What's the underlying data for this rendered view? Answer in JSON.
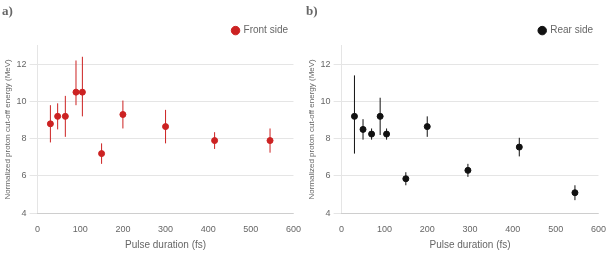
{
  "chart_data": [
    {
      "type": "scatter",
      "title": "a)",
      "xlabel": "Pulse duration (fs)",
      "ylabel": "Normalized proton cut-off energy (MeV)",
      "x": [
        30,
        47,
        65,
        90,
        105,
        150,
        200,
        300,
        415,
        545
      ],
      "series": [
        {
          "name": "Front side",
          "color": "#cc2222",
          "marker": "circle",
          "values": [
            8.8,
            9.2,
            9.2,
            10.5,
            10.5,
            7.2,
            9.3,
            8.65,
            7.9,
            7.9
          ],
          "error_lo": [
            1.0,
            0.7,
            1.1,
            0.7,
            1.3,
            0.55,
            0.75,
            0.9,
            0.45,
            0.65
          ],
          "error_hi": [
            1.0,
            0.7,
            1.1,
            1.7,
            1.9,
            0.55,
            0.75,
            0.9,
            0.45,
            0.65
          ]
        }
      ],
      "xlim": [
        0,
        600
      ],
      "xticks": [
        0,
        100,
        200,
        300,
        400,
        500,
        600
      ],
      "ylim": [
        4,
        13
      ],
      "yticks": [
        4,
        6,
        8,
        10,
        12
      ],
      "grid": "y",
      "legend": "upper right"
    },
    {
      "type": "scatter",
      "title": "b)",
      "xlabel": "Pulse duration (fs)",
      "ylabel": "Normalized proton cut-off energy (MeV)",
      "x": [
        30,
        50,
        70,
        90,
        105,
        150,
        200,
        295,
        415,
        545
      ],
      "series": [
        {
          "name": "Rear side",
          "color": "#111111",
          "marker": "circle",
          "values": [
            9.2,
            8.5,
            8.25,
            9.2,
            8.25,
            5.85,
            8.65,
            6.3,
            7.55,
            5.1
          ],
          "error_lo": [
            2.0,
            0.55,
            0.3,
            1.0,
            0.3,
            0.35,
            0.55,
            0.35,
            0.5,
            0.4
          ],
          "error_hi": [
            2.2,
            0.55,
            0.3,
            1.0,
            0.3,
            0.35,
            0.55,
            0.35,
            0.5,
            0.4
          ]
        }
      ],
      "xlim": [
        0,
        600
      ],
      "xticks": [
        0,
        100,
        200,
        300,
        400,
        500,
        600
      ],
      "ylim": [
        4,
        13
      ],
      "yticks": [
        4,
        6,
        8,
        10,
        12
      ],
      "grid": "y",
      "legend": "upper right"
    }
  ]
}
